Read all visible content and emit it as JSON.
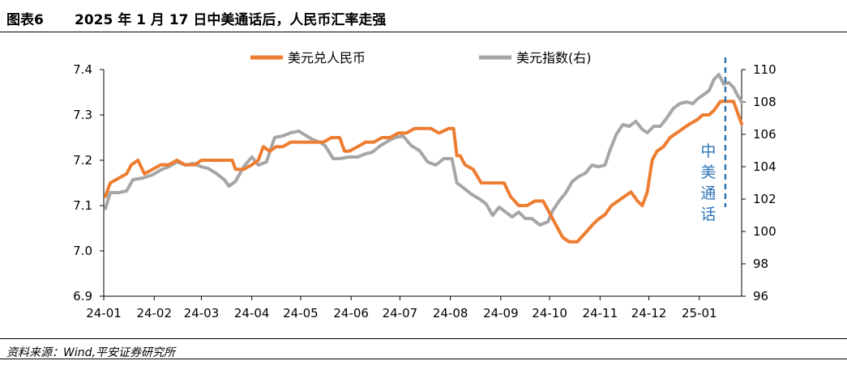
{
  "header": {
    "figure_label": "图表6",
    "title": "2025 年 1 月 17 日中美通话后，人民币汇率走强"
  },
  "footer": {
    "source": "资料来源：Wind,平安证券研究所"
  },
  "chart_data": {
    "type": "line",
    "title": "",
    "x_tick_labels": [
      "24-01",
      "24-02",
      "24-03",
      "24-04",
      "24-05",
      "24-06",
      "24-07",
      "24-08",
      "24-09",
      "24-10",
      "24-11",
      "24-12",
      "25-01"
    ],
    "x_dates": [
      "2024-01-01",
      "2024-02-01",
      "2024-03-01",
      "2024-04-01",
      "2024-05-01",
      "2024-06-01",
      "2024-07-01",
      "2024-08-01",
      "2024-09-01",
      "2024-10-01",
      "2024-11-01",
      "2024-12-01",
      "2025-01-01"
    ],
    "x_range": [
      "2024-01-01",
      "2025-01-27"
    ],
    "y_left": {
      "range": [
        6.9,
        7.4
      ],
      "ticks": [
        "6.9",
        "7.0",
        "7.1",
        "7.2",
        "7.3",
        "7.4"
      ]
    },
    "y_right": {
      "range": [
        96,
        110
      ],
      "ticks": [
        "96",
        "98",
        "100",
        "102",
        "104",
        "106",
        "108",
        "110"
      ]
    },
    "legend_position": "top",
    "series": [
      {
        "name": "美元兑人民币",
        "axis": "left",
        "color": "#ED7D31",
        "points": [
          [
            "2024-01-02",
            7.12
          ],
          [
            "2024-01-05",
            7.15
          ],
          [
            "2024-01-10",
            7.16
          ],
          [
            "2024-01-15",
            7.17
          ],
          [
            "2024-01-18",
            7.19
          ],
          [
            "2024-01-22",
            7.2
          ],
          [
            "2024-01-26",
            7.17
          ],
          [
            "2024-01-31",
            7.18
          ],
          [
            "2024-02-05",
            7.19
          ],
          [
            "2024-02-10",
            7.19
          ],
          [
            "2024-02-15",
            7.2
          ],
          [
            "2024-02-20",
            7.19
          ],
          [
            "2024-02-26",
            7.19
          ],
          [
            "2024-03-01",
            7.2
          ],
          [
            "2024-03-05",
            7.2
          ],
          [
            "2024-03-10",
            7.2
          ],
          [
            "2024-03-15",
            7.2
          ],
          [
            "2024-03-20",
            7.2
          ],
          [
            "2024-03-22",
            7.18
          ],
          [
            "2024-03-27",
            7.18
          ],
          [
            "2024-04-01",
            7.19
          ],
          [
            "2024-04-05",
            7.2
          ],
          [
            "2024-04-08",
            7.23
          ],
          [
            "2024-04-12",
            7.22
          ],
          [
            "2024-04-16",
            7.23
          ],
          [
            "2024-04-20",
            7.23
          ],
          [
            "2024-04-25",
            7.24
          ],
          [
            "2024-04-30",
            7.24
          ],
          [
            "2024-05-05",
            7.24
          ],
          [
            "2024-05-10",
            7.24
          ],
          [
            "2024-05-15",
            7.24
          ],
          [
            "2024-05-20",
            7.25
          ],
          [
            "2024-05-25",
            7.25
          ],
          [
            "2024-05-28",
            7.22
          ],
          [
            "2024-05-31",
            7.22
          ],
          [
            "2024-06-05",
            7.23
          ],
          [
            "2024-06-10",
            7.24
          ],
          [
            "2024-06-15",
            7.24
          ],
          [
            "2024-06-20",
            7.25
          ],
          [
            "2024-06-25",
            7.25
          ],
          [
            "2024-06-30",
            7.26
          ],
          [
            "2024-07-05",
            7.26
          ],
          [
            "2024-07-10",
            7.27
          ],
          [
            "2024-07-15",
            7.27
          ],
          [
            "2024-07-20",
            7.27
          ],
          [
            "2024-07-25",
            7.26
          ],
          [
            "2024-07-31",
            7.27
          ],
          [
            "2024-08-03",
            7.27
          ],
          [
            "2024-08-05",
            7.21
          ],
          [
            "2024-08-07",
            7.21
          ],
          [
            "2024-08-10",
            7.19
          ],
          [
            "2024-08-15",
            7.18
          ],
          [
            "2024-08-20",
            7.15
          ],
          [
            "2024-08-25",
            7.15
          ],
          [
            "2024-08-31",
            7.15
          ],
          [
            "2024-09-03",
            7.15
          ],
          [
            "2024-09-07",
            7.12
          ],
          [
            "2024-09-12",
            7.1
          ],
          [
            "2024-09-17",
            7.1
          ],
          [
            "2024-09-22",
            7.11
          ],
          [
            "2024-09-27",
            7.11
          ],
          [
            "2024-09-30",
            7.09
          ],
          [
            "2024-10-03",
            7.07
          ],
          [
            "2024-10-06",
            7.05
          ],
          [
            "2024-10-09",
            7.03
          ],
          [
            "2024-10-13",
            7.02
          ],
          [
            "2024-10-18",
            7.02
          ],
          [
            "2024-10-23",
            7.04
          ],
          [
            "2024-10-28",
            7.06
          ],
          [
            "2024-10-31",
            7.07
          ],
          [
            "2024-11-04",
            7.08
          ],
          [
            "2024-11-08",
            7.1
          ],
          [
            "2024-11-12",
            7.11
          ],
          [
            "2024-11-16",
            7.12
          ],
          [
            "2024-11-20",
            7.13
          ],
          [
            "2024-11-24",
            7.11
          ],
          [
            "2024-11-27",
            7.1
          ],
          [
            "2024-11-30",
            7.13
          ],
          [
            "2024-12-03",
            7.2
          ],
          [
            "2024-12-06",
            7.22
          ],
          [
            "2024-12-10",
            7.23
          ],
          [
            "2024-12-14",
            7.25
          ],
          [
            "2024-12-18",
            7.26
          ],
          [
            "2024-12-22",
            7.27
          ],
          [
            "2024-12-26",
            7.28
          ],
          [
            "2024-12-31",
            7.29
          ],
          [
            "2025-01-03",
            7.3
          ],
          [
            "2025-01-07",
            7.3
          ],
          [
            "2025-01-10",
            7.31
          ],
          [
            "2025-01-14",
            7.33
          ],
          [
            "2025-01-17",
            7.33
          ],
          [
            "2025-01-20",
            7.33
          ],
          [
            "2025-01-22",
            7.33
          ],
          [
            "2025-01-24",
            7.31
          ],
          [
            "2025-01-27",
            7.28
          ]
        ]
      },
      {
        "name": "美元指数(右)",
        "axis": "right",
        "color": "#A6A6A6",
        "points": [
          [
            "2024-01-02",
            101.4
          ],
          [
            "2024-01-05",
            102.4
          ],
          [
            "2024-01-10",
            102.4
          ],
          [
            "2024-01-15",
            102.5
          ],
          [
            "2024-01-19",
            103.2
          ],
          [
            "2024-01-25",
            103.3
          ],
          [
            "2024-01-31",
            103.5
          ],
          [
            "2024-02-05",
            103.8
          ],
          [
            "2024-02-10",
            104.0
          ],
          [
            "2024-02-15",
            104.3
          ],
          [
            "2024-02-20",
            104.1
          ],
          [
            "2024-02-25",
            104.2
          ],
          [
            "2024-03-01",
            104.0
          ],
          [
            "2024-03-05",
            103.9
          ],
          [
            "2024-03-10",
            103.6
          ],
          [
            "2024-03-15",
            103.2
          ],
          [
            "2024-03-18",
            102.8
          ],
          [
            "2024-03-22",
            103.1
          ],
          [
            "2024-03-27",
            104.0
          ],
          [
            "2024-04-01",
            104.6
          ],
          [
            "2024-04-05",
            104.1
          ],
          [
            "2024-04-10",
            104.3
          ],
          [
            "2024-04-15",
            105.8
          ],
          [
            "2024-04-20",
            105.9
          ],
          [
            "2024-04-25",
            106.1
          ],
          [
            "2024-04-30",
            106.2
          ],
          [
            "2024-05-03",
            106.0
          ],
          [
            "2024-05-08",
            105.7
          ],
          [
            "2024-05-13",
            105.5
          ],
          [
            "2024-05-16",
            105.3
          ],
          [
            "2024-05-21",
            104.5
          ],
          [
            "2024-05-25",
            104.5
          ],
          [
            "2024-05-31",
            104.6
          ],
          [
            "2024-06-05",
            104.6
          ],
          [
            "2024-06-10",
            104.8
          ],
          [
            "2024-06-14",
            104.9
          ],
          [
            "2024-06-19",
            105.3
          ],
          [
            "2024-06-24",
            105.6
          ],
          [
            "2024-06-28",
            105.8
          ],
          [
            "2024-07-03",
            105.9
          ],
          [
            "2024-07-08",
            105.3
          ],
          [
            "2024-07-13",
            105.0
          ],
          [
            "2024-07-18",
            104.3
          ],
          [
            "2024-07-23",
            104.1
          ],
          [
            "2024-07-28",
            104.5
          ],
          [
            "2024-08-02",
            104.5
          ],
          [
            "2024-08-05",
            103.0
          ],
          [
            "2024-08-09",
            102.7
          ],
          [
            "2024-08-14",
            102.3
          ],
          [
            "2024-08-19",
            102.0
          ],
          [
            "2024-08-23",
            101.7
          ],
          [
            "2024-08-27",
            101.0
          ],
          [
            "2024-08-31",
            101.5
          ],
          [
            "2024-09-04",
            101.2
          ],
          [
            "2024-09-08",
            100.9
          ],
          [
            "2024-09-12",
            101.2
          ],
          [
            "2024-09-16",
            100.8
          ],
          [
            "2024-09-20",
            100.8
          ],
          [
            "2024-09-25",
            100.4
          ],
          [
            "2024-09-30",
            100.6
          ],
          [
            "2024-10-03",
            101.3
          ],
          [
            "2024-10-07",
            101.9
          ],
          [
            "2024-10-11",
            102.4
          ],
          [
            "2024-10-15",
            103.1
          ],
          [
            "2024-10-19",
            103.4
          ],
          [
            "2024-10-23",
            103.6
          ],
          [
            "2024-10-27",
            104.1
          ],
          [
            "2024-10-31",
            104.0
          ],
          [
            "2024-11-04",
            104.1
          ],
          [
            "2024-11-07",
            105.0
          ],
          [
            "2024-11-11",
            106.0
          ],
          [
            "2024-11-15",
            106.6
          ],
          [
            "2024-11-19",
            106.5
          ],
          [
            "2024-11-23",
            106.8
          ],
          [
            "2024-11-27",
            106.3
          ],
          [
            "2024-11-30",
            106.1
          ],
          [
            "2024-12-04",
            106.5
          ],
          [
            "2024-12-08",
            106.5
          ],
          [
            "2024-12-12",
            107.0
          ],
          [
            "2024-12-16",
            107.6
          ],
          [
            "2024-12-20",
            107.9
          ],
          [
            "2024-12-24",
            108.0
          ],
          [
            "2024-12-28",
            107.9
          ],
          [
            "2024-12-31",
            108.2
          ],
          [
            "2025-01-03",
            108.4
          ],
          [
            "2025-01-07",
            108.7
          ],
          [
            "2025-01-10",
            109.4
          ],
          [
            "2025-01-13",
            109.7
          ],
          [
            "2025-01-16",
            109.1
          ],
          [
            "2025-01-19",
            109.2
          ],
          [
            "2025-01-22",
            108.9
          ],
          [
            "2025-01-24",
            108.5
          ],
          [
            "2025-01-27",
            108.0
          ]
        ]
      }
    ],
    "annotation": {
      "date": "2025-01-17",
      "text": "中美通话",
      "color": "#2E75B6"
    }
  }
}
